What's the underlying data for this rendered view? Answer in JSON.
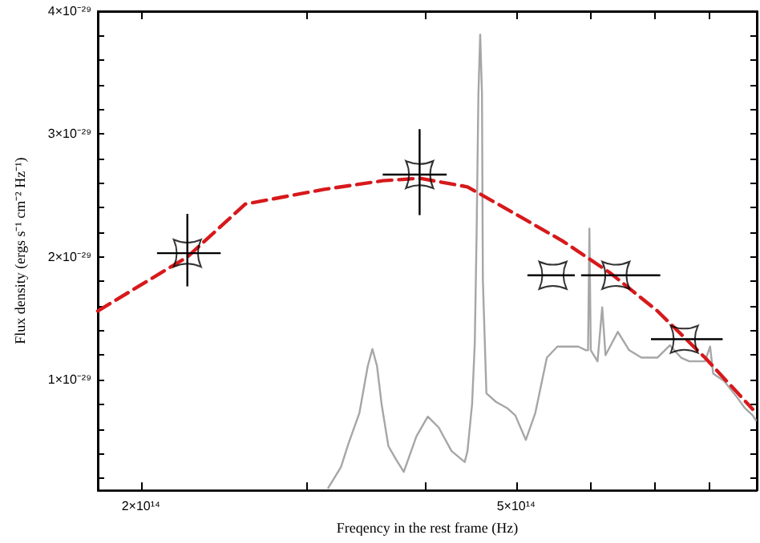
{
  "chart_data": {
    "type": "line",
    "xlabel": "Freqency in the rest frame (Hz)",
    "ylabel": "Flux density (ergs s⁻¹ cm⁻² Hz⁻¹)",
    "log": "x",
    "xlim": [
      180000000000000.0,
      900000000000000.0
    ],
    "xticks": [
      {
        "value": 200000000000000.0,
        "label": "2×10¹⁴"
      },
      {
        "value": 300000000000000.0,
        "label": null
      },
      {
        "value": 400000000000000.0,
        "label": null
      },
      {
        "value": 500000000000000.0,
        "label": "5×10¹⁴"
      },
      {
        "value": 600000000000000.0,
        "label": null
      },
      {
        "value": 700000000000000.0,
        "label": null
      },
      {
        "value": 800000000000000.0,
        "label": null
      }
    ],
    "ylim": [
      1e-30,
      4e-29
    ],
    "yticks": [
      {
        "value": 2e-30,
        "label": null
      },
      {
        "value": 4e-30,
        "label": null
      },
      {
        "value": 6e-30,
        "label": null
      },
      {
        "value": 8e-30,
        "label": null
      },
      {
        "value": 1e-29,
        "label": "1×10⁻²⁹"
      },
      {
        "value": 1.2e-29,
        "label": null
      },
      {
        "value": 1.4e-29,
        "label": null
      },
      {
        "value": 1.6e-29,
        "label": null
      },
      {
        "value": 1.8e-29,
        "label": null
      },
      {
        "value": 2e-29,
        "label": "2×10⁻²⁹"
      },
      {
        "value": 2.2e-29,
        "label": null
      },
      {
        "value": 2.4e-29,
        "label": null
      },
      {
        "value": 2.6e-29,
        "label": null
      },
      {
        "value": 2.8e-29,
        "label": null
      },
      {
        "value": 3e-29,
        "label": "3×10⁻²⁹"
      },
      {
        "value": 3.2e-29,
        "label": null
      },
      {
        "value": 3.4e-29,
        "label": null
      },
      {
        "value": 3.6e-29,
        "label": null
      },
      {
        "value": 3.8e-29,
        "label": null
      },
      {
        "value": 4e-29,
        "label": "4×10⁻²⁹"
      }
    ],
    "grid": false,
    "series": [
      {
        "color": "#a6a6a6",
        "marker": "none",
        "line_style": "solid",
        "x": [
          316000000000000.0,
          326000000000000.0,
          332000000000000.0,
          341000000000000.0,
          348000000000000.0,
          352000000000000.0,
          356000000000000.0,
          360000000000000.0,
          366000000000000.0,
          373000000000000.0,
          380000000000000.0,
          392000000000000.0,
          403000000000000.0,
          414000000000000.0,
          427000000000000.0,
          441000000000000.0,
          444000000000000.0,
          449000000000000.0,
          452000000000000.0,
          454000000000000.0,
          456000000000000.0,
          458000000000000.0,
          460000000000000.0,
          461000000000000.0,
          465000000000000.0,
          476000000000000.0,
          489000000000000.0,
          499000000000000.0,
          512000000000000.0,
          524000000000000.0,
          539000000000000.0,
          553000000000000.0,
          582000000000000.0,
          593000000000000.0,
          596000000000000.0,
          598000000000000.0,
          600000000000000.0,
          610000000000000.0,
          617000000000000.0,
          622000000000000.0,
          641000000000000.0,
          659000000000000.0,
          679000000000000.0,
          706000000000000.0,
          728000000000000.0,
          748000000000000.0,
          763000000000000.0,
          793000000000000.0,
          803000000000000.0,
          809000000000000.0,
          831000000000000.0,
          857000000000000.0,
          874000000000000.0,
          891000000000000.0,
          898000000000000.0
        ],
        "values": [
          1.2e-30,
          2.9e-30,
          4.8e-30,
          7.3e-30,
          1.11e-29,
          1.25e-29,
          1.11e-29,
          8e-30,
          4.6e-30,
          3.5e-30,
          2.5e-30,
          5.4e-30,
          7e-30,
          6.1e-30,
          4.2e-30,
          3.3e-30,
          4.2e-30,
          8e-30,
          1.3e-29,
          2.19e-29,
          3.33e-29,
          3.81e-29,
          3.33e-29,
          1.81e-29,
          8.9e-30,
          8.2e-30,
          7.7e-30,
          7.1e-30,
          5.1e-30,
          7.3e-30,
          1.18e-29,
          1.27e-29,
          1.27e-29,
          1.24e-29,
          1.24e-29,
          2.23e-29,
          1.24e-29,
          1.15e-29,
          1.59e-29,
          1.2e-29,
          1.39e-29,
          1.24e-29,
          1.18e-29,
          1.18e-29,
          1.28e-29,
          1.18e-29,
          1.15e-29,
          1.15e-29,
          1.27e-29,
          1.05e-29,
          9.9e-30,
          8.6e-30,
          7.7e-30,
          7.1e-30,
          6.7e-30
        ]
      },
      {
        "color": "#d7191c",
        "marker": "none",
        "line_style": "dashed",
        "x": [
          180000000000000.0,
          224000000000000.0,
          258000000000000.0,
          313000000000000.0,
          361000000000000.0,
          395000000000000.0,
          444000000000000.0,
          499000000000000.0,
          560000000000000.0,
          629000000000000.0,
          706000000000000.0,
          793000000000000.0,
          891000000000000.0
        ],
        "values": [
          1.56e-29,
          2e-29,
          2.43e-29,
          2.55e-29,
          2.62e-29,
          2.64e-29,
          2.57e-29,
          2.35e-29,
          2.13e-29,
          1.87e-29,
          1.56e-29,
          1.18e-29,
          7.6e-30
        ]
      },
      {
        "type": "scatter",
        "color": "#000000",
        "marker": "star",
        "x": [
          224000000000000.0,
          395000000000000.0,
          547000000000000.0,
          638000000000000.0,
          754000000000000.0
        ],
        "values": [
          2.03e-29,
          2.67e-29,
          1.85e-29,
          1.85e-29,
          1.33e-29
        ],
        "errors": [
          [
            1.76e-29,
            2.35e-29
          ],
          [
            2.34e-29,
            3.04e-29
          ],
          null,
          null,
          null
        ],
        "xerrors": [
          [
            208000000000000.0,
            243000000000000.0
          ],
          [
            361000000000000.0,
            422000000000000.0
          ],
          [
            514000000000000.0,
            577000000000000.0
          ],
          [
            586000000000000.0,
            711000000000000.0
          ],
          [
            695000000000000.0,
            828000000000000.0
          ]
        ]
      }
    ]
  }
}
